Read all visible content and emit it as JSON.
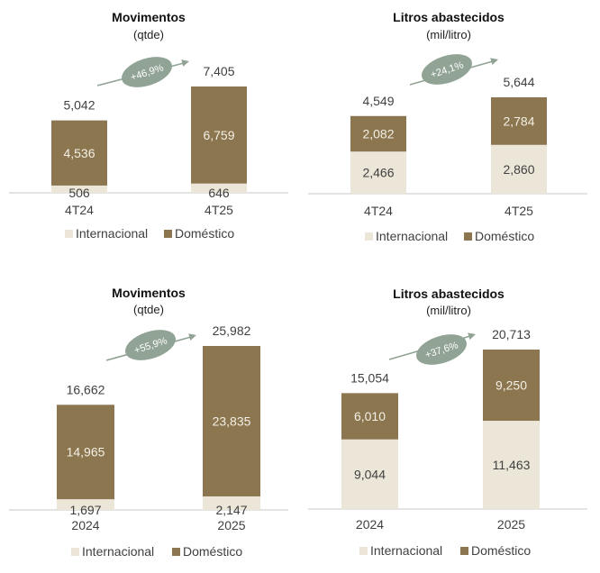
{
  "colors": {
    "domestico": "#8b7650",
    "internacional": "#ebe6d8",
    "badge": "#91a395",
    "axis": "#c8c8c8",
    "text": "#404040",
    "label_light": "#f3efe4"
  },
  "legend": [
    "Internacional",
    "Doméstico"
  ],
  "chart_data": [
    {
      "type": "bar",
      "stacked": true,
      "title": "Movimentos",
      "subtitle": "(qtde)",
      "categories": [
        "4T24",
        "4T25"
      ],
      "series": [
        {
          "name": "Internacional",
          "values": [
            506,
            646
          ]
        },
        {
          "name": "Doméstico",
          "values": [
            4536,
            6759
          ]
        }
      ],
      "totals": [
        "5,042",
        "7,405"
      ],
      "labels": {
        "Internacional": [
          "506",
          "646"
        ],
        "Doméstico": [
          "4,536",
          "6,759"
        ]
      },
      "growth": "+46,9%"
    },
    {
      "type": "bar",
      "stacked": true,
      "title": "Litros abastecidos",
      "subtitle": "(mil/litro)",
      "categories": [
        "4T24",
        "4T25"
      ],
      "series": [
        {
          "name": "Internacional",
          "values": [
            2466,
            2860
          ]
        },
        {
          "name": "Doméstico",
          "values": [
            2082,
            2784
          ]
        }
      ],
      "totals": [
        "4,549",
        "5,644"
      ],
      "labels": {
        "Internacional": [
          "2,466",
          "2,860"
        ],
        "Doméstico": [
          "2,082",
          "2,784"
        ]
      },
      "growth": "+24,1%"
    },
    {
      "type": "bar",
      "stacked": true,
      "title": "Movimentos",
      "subtitle": "(qtde)",
      "categories": [
        "2024",
        "2025"
      ],
      "series": [
        {
          "name": "Internacional",
          "values": [
            1697,
            2147
          ]
        },
        {
          "name": "Doméstico",
          "values": [
            14965,
            23835
          ]
        }
      ],
      "totals": [
        "16,662",
        "25,982"
      ],
      "labels": {
        "Internacional": [
          "1,697",
          "2,147"
        ],
        "Doméstico": [
          "14,965",
          "23,835"
        ]
      },
      "growth": "+55,9%"
    },
    {
      "type": "bar",
      "stacked": true,
      "title": "Litros abastecidos",
      "subtitle": "(mil/litro)",
      "categories": [
        "2024",
        "2025"
      ],
      "series": [
        {
          "name": "Internacional",
          "values": [
            9044,
            11463
          ]
        },
        {
          "name": "Doméstico",
          "values": [
            6010,
            9250
          ]
        }
      ],
      "totals": [
        "15,054",
        "20,713"
      ],
      "labels": {
        "Internacional": [
          "9,044",
          "11,463"
        ],
        "Doméstico": [
          "6,010",
          "9,250"
        ]
      },
      "growth": "+37,6%"
    }
  ]
}
